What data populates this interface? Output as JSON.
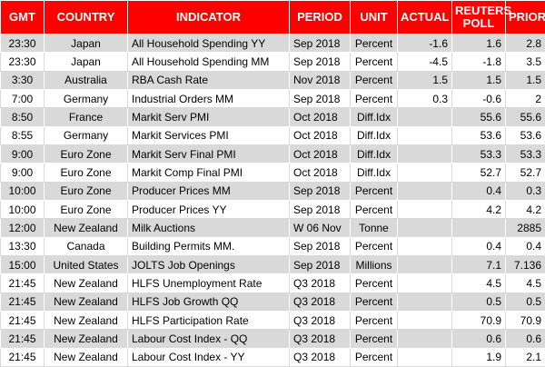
{
  "table": {
    "columns": [
      "GMT",
      "COUNTRY",
      "INDICATOR",
      "PERIOD",
      "UNIT",
      "ACTUAL",
      "REUTERS POLL",
      "PRIOR"
    ],
    "rows": [
      [
        "23:30",
        "Japan",
        "All Household Spending YY",
        "Sep 2018",
        "Percent",
        "-1.6",
        "1.6",
        "2.8"
      ],
      [
        "23:30",
        "Japan",
        "All Household Spending MM",
        "Sep 2018",
        "Percent",
        "-4.5",
        "-1.8",
        "3.5"
      ],
      [
        "3:30",
        "Australia",
        "RBA Cash Rate",
        "Nov 2018",
        "Percent",
        "1.5",
        "1.5",
        "1.5"
      ],
      [
        "7:00",
        "Germany",
        "Industrial Orders MM",
        "Sep 2018",
        "Percent",
        "0.3",
        "-0.6",
        "2"
      ],
      [
        "8:50",
        "France",
        "Markit Serv PMI",
        "Oct 2018",
        "Diff.Idx",
        null,
        "55.6",
        "55.6"
      ],
      [
        "8:55",
        "Germany",
        "Markit Services PMI",
        "Oct 2018",
        "Diff.Idx",
        null,
        "53.6",
        "53.6"
      ],
      [
        "9:00",
        "Euro Zone",
        "Markit Serv Final PMI",
        "Oct 2018",
        "Diff.Idx",
        null,
        "53.3",
        "53.3"
      ],
      [
        "9:00",
        "Euro Zone",
        "Markit Comp Final PMI",
        "Oct 2018",
        "Diff.Idx",
        null,
        "52.7",
        "52.7"
      ],
      [
        "10:00",
        "Euro Zone",
        "Producer Prices MM",
        "Sep 2018",
        "Percent",
        null,
        "0.4",
        "0.3"
      ],
      [
        "10:00",
        "Euro Zone",
        "Producer Prices YY",
        "Sep 2018",
        "Percent",
        null,
        "4.2",
        "4.2"
      ],
      [
        "12:00",
        "New Zealand",
        "Milk Auctions",
        "W 06 Nov",
        "Tonne",
        null,
        null,
        "2885"
      ],
      [
        "13:30",
        "Canada",
        "Building Permits MM.",
        "Sep 2018",
        "Percent",
        null,
        "0.4",
        "0.4"
      ],
      [
        "15:00",
        "United States",
        "JOLTS Job Openings",
        "Sep 2018",
        "Millions",
        null,
        "7.1",
        "7.136"
      ],
      [
        "21:45",
        "New Zealand",
        "HLFS Unemployment Rate",
        "Q3 2018",
        "Percent",
        null,
        "4.5",
        "4.5"
      ],
      [
        "21:45",
        "New Zealand",
        "HLFS Job Growth QQ",
        "Q3 2018",
        "Percent",
        null,
        "0.5",
        "0.5"
      ],
      [
        "21:45",
        "New Zealand",
        "HLFS Participation Rate",
        "Q3 2018",
        "Percent",
        null,
        "70.9",
        "70.9"
      ],
      [
        "21:45",
        "New Zealand",
        "Labour Cost Index - QQ",
        "Q3 2018",
        "Percent",
        null,
        "0.6",
        "0.6"
      ],
      [
        "21:45",
        "New Zealand",
        "Labour Cost Index - YY",
        "Q3 2018",
        "Percent",
        null,
        "1.9",
        "2.1"
      ]
    ]
  }
}
